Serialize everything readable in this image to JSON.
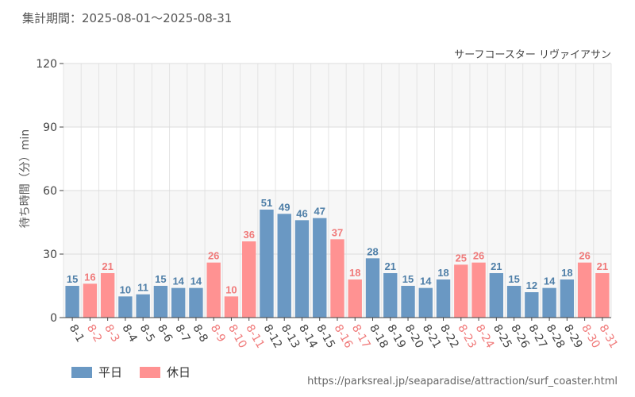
{
  "header": {
    "period": "集計期間：2025-08-01～2025-08-31"
  },
  "source_url": "https://parksreal.jp/seaparadise/attraction/surf_coaster.html",
  "colors": {
    "weekday": "#6a98c3",
    "holiday": "#ff9292",
    "weekday_label": "#4f7fa8",
    "holiday_label": "#f07a7a"
  },
  "legend": [
    {
      "key": "weekday",
      "label": "平日"
    },
    {
      "key": "holiday",
      "label": "休日"
    }
  ],
  "chart_data": {
    "type": "bar",
    "title": "サーフコースター リヴァイアサン",
    "xlabel": "",
    "ylabel": "待ち時間（分）min",
    "ylim": [
      0,
      120
    ],
    "yticks": [
      0,
      30,
      60,
      90,
      120
    ],
    "grid": true,
    "legend_position": "bottom-left",
    "categories": [
      "8-1",
      "8-2",
      "8-3",
      "8-4",
      "8-5",
      "8-6",
      "8-7",
      "8-8",
      "8-9",
      "8-10",
      "8-11",
      "8-12",
      "8-13",
      "8-14",
      "8-15",
      "8-16",
      "8-17",
      "8-18",
      "8-19",
      "8-20",
      "8-21",
      "8-22",
      "8-23",
      "8-24",
      "8-25",
      "8-26",
      "8-27",
      "8-28",
      "8-29",
      "8-30",
      "8-31"
    ],
    "values": [
      15,
      16,
      21,
      10,
      11,
      15,
      14,
      14,
      26,
      10,
      36,
      51,
      49,
      46,
      47,
      37,
      18,
      28,
      21,
      15,
      14,
      18,
      25,
      26,
      21,
      15,
      12,
      14,
      18,
      26,
      21
    ],
    "day_type": [
      "weekday",
      "holiday",
      "holiday",
      "weekday",
      "weekday",
      "weekday",
      "weekday",
      "weekday",
      "holiday",
      "holiday",
      "holiday",
      "weekday",
      "weekday",
      "weekday",
      "weekday",
      "holiday",
      "holiday",
      "weekday",
      "weekday",
      "weekday",
      "weekday",
      "weekday",
      "holiday",
      "holiday",
      "weekday",
      "weekday",
      "weekday",
      "weekday",
      "weekday",
      "holiday",
      "holiday"
    ]
  }
}
